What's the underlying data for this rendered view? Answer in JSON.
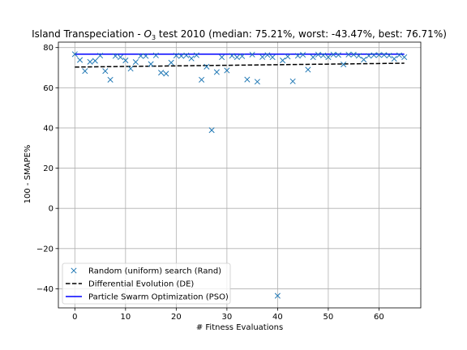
{
  "chart_data": {
    "type": "scatter",
    "title_prefix": "Island Transpeciation - ",
    "title_o": "O",
    "title_sub": "3",
    "title_suffix": " test 2010 (median: 75.21%, worst: -43.47%, best: 76.71%)",
    "xlabel": "# Fitness Evaluations",
    "ylabel": "100 - SMAPE%",
    "xlim": [
      -3.25,
      68.25
    ],
    "ylim": [
      -49.5,
      82.7
    ],
    "xticks": [
      0,
      10,
      20,
      30,
      40,
      50,
      60
    ],
    "yticks": [
      -40,
      -20,
      0,
      20,
      40,
      60,
      80
    ],
    "grid": true,
    "legend_position": "lower-left",
    "series": [
      {
        "name": "Random (uniform) search (Rand)",
        "kind": "marker",
        "marker": "x",
        "color": "#1f77b4",
        "x": [
          0,
          1,
          2,
          3,
          4,
          5,
          6,
          7,
          8,
          9,
          10,
          11,
          12,
          13,
          14,
          15,
          16,
          17,
          18,
          19,
          20,
          21,
          22,
          23,
          24,
          25,
          26,
          27,
          28,
          29,
          30,
          31,
          32,
          33,
          34,
          35,
          36,
          37,
          38,
          39,
          40,
          41,
          42,
          43,
          44,
          45,
          46,
          47,
          48,
          49,
          50,
          51,
          52,
          53,
          54,
          55,
          56,
          57,
          58,
          59,
          60,
          61,
          62,
          63,
          64,
          65
        ],
        "y": [
          76.7,
          73.8,
          68.3,
          72.9,
          73.4,
          76.0,
          68.3,
          64.0,
          75.8,
          75.2,
          73.6,
          69.5,
          72.8,
          75.8,
          75.8,
          71.8,
          76.1,
          67.5,
          67.0,
          72.5,
          76.0,
          75.8,
          76.1,
          74.6,
          76.2,
          64.0,
          70.5,
          38.9,
          67.8,
          75.2,
          68.6,
          75.9,
          75.2,
          75.7,
          64.1,
          76.5,
          63.0,
          75.3,
          76.3,
          75.2,
          -43.5,
          73.6,
          75.5,
          63.2,
          75.9,
          76.4,
          69.0,
          75.2,
          76.5,
          76.1,
          75.2,
          76.5,
          76.3,
          71.6,
          76.5,
          76.5,
          75.9,
          74.0,
          75.9,
          76.2,
          76.3,
          76.3,
          76.0,
          74.4,
          76.2,
          75.2
        ]
      },
      {
        "name": "Differential Evolution (DE)",
        "kind": "line",
        "dash": "dashed",
        "color": "#000000",
        "x": [
          0,
          65
        ],
        "y": [
          70.3,
          72.2
        ]
      },
      {
        "name": "Particle Swarm Optimization (PSO)",
        "kind": "line",
        "dash": "solid",
        "color": "#0000ff",
        "x": [
          0,
          65
        ],
        "y": [
          76.7,
          76.7
        ]
      }
    ]
  }
}
